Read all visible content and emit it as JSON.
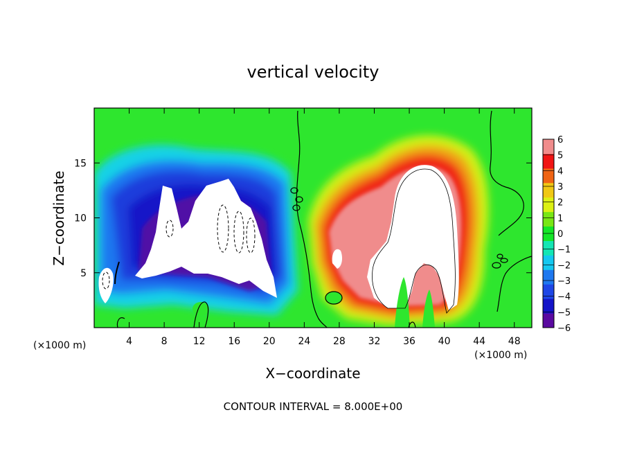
{
  "chart_data": {
    "type": "heatmap",
    "title": "vertical velocity",
    "xlabel": "X−coordinate",
    "ylabel": "Z−coordinate",
    "x_unit_left": "(×1000 m)",
    "x_unit_right": "(×1000 m)",
    "xlim": [
      0,
      50
    ],
    "ylim": [
      0,
      20
    ],
    "x_ticks": [
      4,
      8,
      12,
      16,
      20,
      24,
      28,
      32,
      36,
      40,
      44,
      48
    ],
    "x_tick_labels": [
      "4",
      "8",
      "12",
      "16",
      "20",
      "24",
      "28",
      "32",
      "36",
      "40",
      "44",
      "48"
    ],
    "y_ticks": [
      5,
      10,
      15
    ],
    "y_tick_labels": [
      "5",
      "10",
      "15"
    ],
    "colorbar": {
      "min": -6,
      "max": 6,
      "labels": [
        "6",
        "5",
        "4",
        "3",
        "2",
        "1",
        "0",
        "−1",
        "−2",
        "−3",
        "−4",
        "−5",
        "−6"
      ],
      "colors": [
        "#5a0aa0",
        "#1414c8",
        "#1e46e6",
        "#1e78f0",
        "#14c8f0",
        "#14e6b4",
        "#14e628",
        "#78e614",
        "#dcf014",
        "#f0c814",
        "#f06414",
        "#f01414",
        "#f08c8c"
      ]
    },
    "footer": "CONTOUR INTERVAL = 8.000E+00",
    "grid": false,
    "legend": "right-colorbar"
  }
}
